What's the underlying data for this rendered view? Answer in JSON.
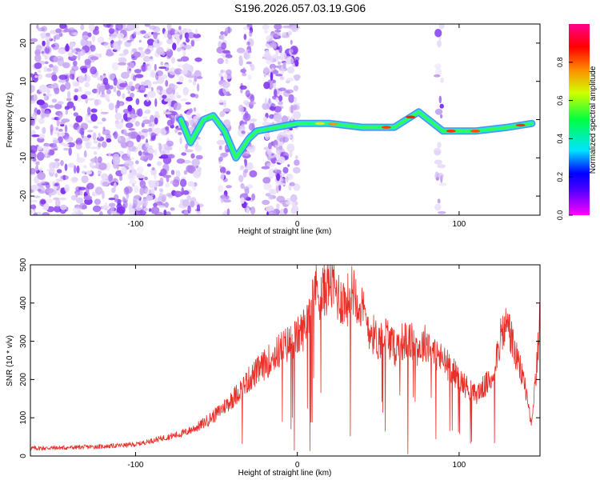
{
  "title": "S196.2026.057.03.19.G06",
  "colors": {
    "snr_line": "#e8302a",
    "axis": "#000000"
  },
  "chart_data": [
    {
      "type": "heatmap",
      "name": "spectrogram",
      "xlabel": "Height of straight line (km)",
      "ylabel": "Frequency (Hz)",
      "xlim": [
        -165,
        150
      ],
      "ylim": [
        -25,
        25
      ],
      "xticks": [
        -100,
        0,
        100
      ],
      "yticks": [
        -20,
        -10,
        0,
        10,
        20
      ],
      "colorbar": {
        "label": "Normalized spectral amplitude",
        "range": [
          0,
          1
        ],
        "ticks": [
          "0.0",
          "0.2",
          "0.4",
          "0.6",
          "0.8"
        ],
        "colormap": "rainbow (magenta-blue-cyan-green-yellow-red-magenta)"
      },
      "ridge": {
        "description": "Main spectral ridge above 0 km",
        "x": [
          -72,
          -66,
          -58,
          -52,
          -45,
          -38,
          -30,
          -25,
          0,
          20,
          40,
          60,
          75,
          90,
          110,
          130,
          145
        ],
        "y": [
          0,
          -6,
          0,
          1,
          -3,
          -10,
          -5,
          -3,
          -1,
          -1,
          -2,
          -2,
          2,
          -3,
          -3,
          -2,
          -1
        ]
      }
    },
    {
      "type": "line",
      "name": "snr",
      "xlabel": "Height of straight line (km)",
      "ylabel": "SNR (10 * v/v)",
      "xlim": [
        -165,
        150
      ],
      "ylim": [
        0,
        500
      ],
      "xticks": [
        -100,
        0,
        100
      ],
      "yticks": [
        0,
        100,
        200,
        300,
        400,
        500
      ],
      "x": [
        -165,
        -140,
        -120,
        -100,
        -90,
        -80,
        -70,
        -60,
        -50,
        -40,
        -30,
        -20,
        -10,
        0,
        5,
        10,
        15,
        20,
        25,
        30,
        35,
        40,
        45,
        50,
        55,
        60,
        65,
        70,
        75,
        80,
        85,
        90,
        95,
        100,
        105,
        110,
        115,
        120,
        125,
        130,
        135,
        140,
        145,
        150
      ],
      "y": [
        20,
        22,
        25,
        30,
        40,
        50,
        60,
        80,
        110,
        150,
        200,
        240,
        280,
        310,
        340,
        450,
        420,
        460,
        420,
        400,
        440,
        380,
        330,
        300,
        320,
        280,
        300,
        300,
        280,
        300,
        270,
        250,
        230,
        200,
        180,
        160,
        180,
        200,
        300,
        350,
        260,
        200,
        80,
        350
      ]
    }
  ]
}
